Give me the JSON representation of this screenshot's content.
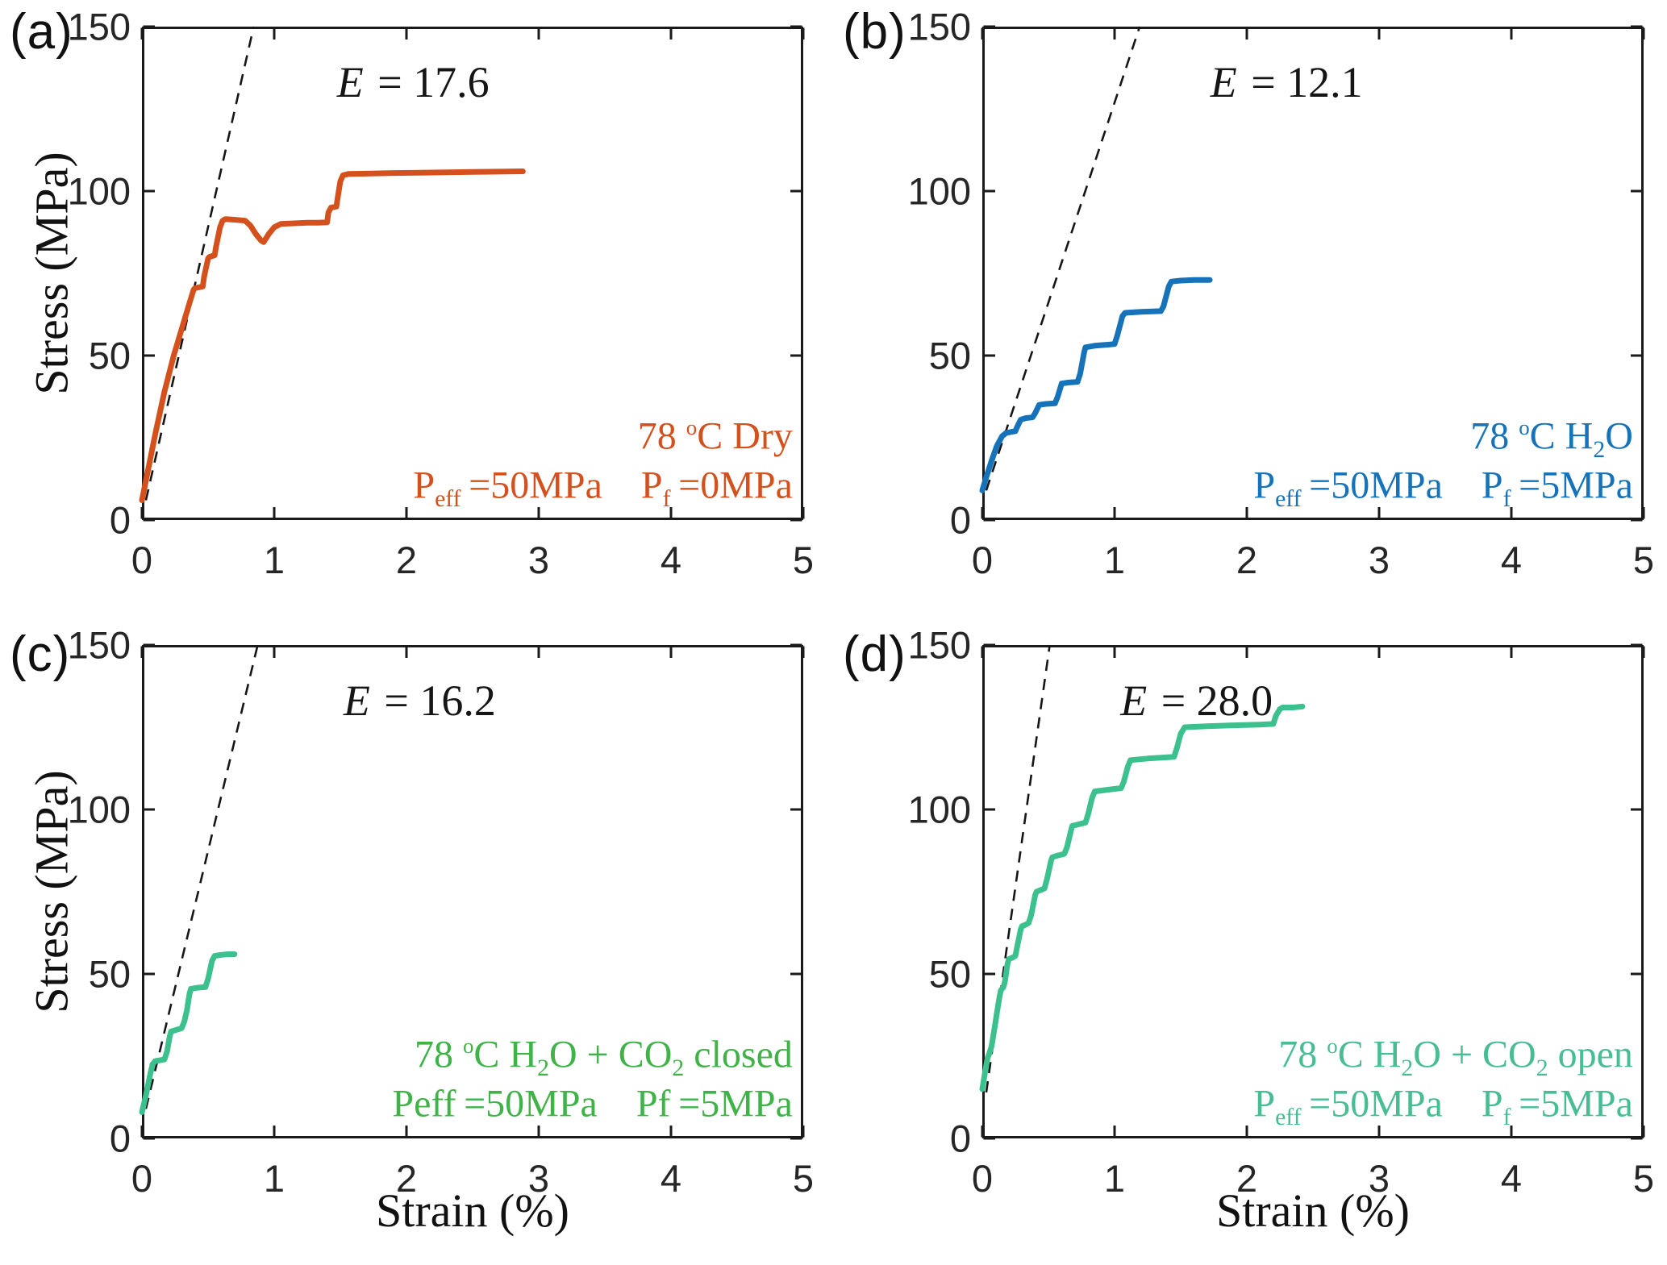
{
  "figure": {
    "background": "#ffffff",
    "frame_color": "#1a1a1a",
    "dashed_line_color": "#161616",
    "x_axis": {
      "label": "Strain (%)",
      "min": 0,
      "max": 5,
      "ticks": [
        0,
        1,
        2,
        3,
        4,
        5
      ]
    },
    "y_axis": {
      "label": "Stress (MPa)",
      "min": 0,
      "max": 150,
      "ticks": [
        0,
        50,
        100,
        150
      ]
    },
    "grid": "off",
    "legend": "none"
  },
  "chart_data": [
    {
      "panel_label": "(a)",
      "type": "line",
      "color": "#d4511e",
      "text_color": "#d4511e",
      "modulus_value": 17.6,
      "modulus_text": "E = 17.6",
      "modulus_label_segments": [
        {
          "t": "E",
          "i": true
        },
        {
          "t": " = 17.6"
        }
      ],
      "modulus_label_pos": [
        2.05,
        133
      ],
      "condition_text": "78 °C Dry",
      "condition_segments": [
        {
          "t": "78 "
        },
        {
          "t": "o",
          "sup": true
        },
        {
          "t": "C Dry"
        }
      ],
      "pressure_text": "Peff =50MPa  Pf =0MPa",
      "pressure_segments": [
        {
          "t": "P"
        },
        {
          "t": "eff",
          "sub": true
        },
        {
          "t": " =50MPa"
        },
        {
          "t": " "
        },
        {
          "t": "P"
        },
        {
          "t": "f",
          "sub": true
        },
        {
          "t": " =0MPa"
        }
      ],
      "annotation_anchor_x": 4.92,
      "condition_y": 25.5,
      "pressure_y": 10.5,
      "modulus_line": {
        "x": [
          0.03,
          0.845
        ],
        "y": [
          6,
          150
        ]
      },
      "series": {
        "name": "78 C Dry stress-strain",
        "points": [
          [
            0,
            6
          ],
          [
            0.04,
            14
          ],
          [
            0.1,
            26
          ],
          [
            0.17,
            39
          ],
          [
            0.24,
            50
          ],
          [
            0.3,
            58
          ],
          [
            0.36,
            66
          ],
          [
            0.39,
            70
          ],
          [
            0.4,
            70.5
          ],
          [
            0.46,
            71
          ],
          [
            0.47,
            74
          ],
          [
            0.5,
            79.5
          ],
          [
            0.51,
            80
          ],
          [
            0.55,
            80.5
          ],
          [
            0.56,
            83
          ],
          [
            0.59,
            89
          ],
          [
            0.61,
            91
          ],
          [
            0.63,
            91.5
          ],
          [
            0.7,
            91.3
          ],
          [
            0.78,
            91
          ],
          [
            0.82,
            89.5
          ],
          [
            0.86,
            87
          ],
          [
            0.9,
            85
          ],
          [
            0.92,
            84.5
          ],
          [
            0.96,
            87
          ],
          [
            1.0,
            89
          ],
          [
            1.05,
            90
          ],
          [
            1.15,
            90.2
          ],
          [
            1.25,
            90.4
          ],
          [
            1.33,
            90.4
          ],
          [
            1.4,
            90.5
          ],
          [
            1.41,
            93.5
          ],
          [
            1.43,
            95
          ],
          [
            1.47,
            95.3
          ],
          [
            1.48,
            98
          ],
          [
            1.5,
            103
          ],
          [
            1.52,
            104.8
          ],
          [
            1.56,
            105.2
          ],
          [
            1.7,
            105.3
          ],
          [
            1.9,
            105.5
          ],
          [
            2.1,
            105.6
          ],
          [
            2.3,
            105.7
          ],
          [
            2.5,
            105.8
          ],
          [
            2.7,
            105.9
          ],
          [
            2.88,
            106
          ]
        ]
      }
    },
    {
      "panel_label": "(b)",
      "type": "line",
      "color": "#1673b9",
      "text_color": "#1673b9",
      "modulus_value": 12.1,
      "modulus_text": "E = 12.1",
      "modulus_label_segments": [
        {
          "t": "E",
          "i": true
        },
        {
          "t": " = 12.1"
        }
      ],
      "modulus_label_pos": [
        2.3,
        133
      ],
      "condition_text": "78 °C H2O",
      "condition_segments": [
        {
          "t": "78 "
        },
        {
          "t": "o",
          "sup": true
        },
        {
          "t": "C H"
        },
        {
          "t": "2",
          "sub": true
        },
        {
          "t": "O"
        }
      ],
      "pressure_text": "Peff =50MPa  Pf =5MPa",
      "pressure_segments": [
        {
          "t": "P"
        },
        {
          "t": "eff",
          "sub": true
        },
        {
          "t": " =50MPa"
        },
        {
          "t": " "
        },
        {
          "t": "P"
        },
        {
          "t": "f",
          "sub": true
        },
        {
          "t": " =5MPa"
        }
      ],
      "annotation_anchor_x": 4.92,
      "condition_y": 25.5,
      "pressure_y": 10.5,
      "modulus_line": {
        "x": [
          0.03,
          1.19
        ],
        "y": [
          9,
          150
        ]
      },
      "series": {
        "name": "78 C H2O stress-strain",
        "points": [
          [
            0,
            9
          ],
          [
            0.03,
            13
          ],
          [
            0.07,
            18
          ],
          [
            0.11,
            22.5
          ],
          [
            0.15,
            25.5
          ],
          [
            0.18,
            26.5
          ],
          [
            0.22,
            26.8
          ],
          [
            0.25,
            27
          ],
          [
            0.26,
            28
          ],
          [
            0.29,
            30.5
          ],
          [
            0.33,
            31
          ],
          [
            0.38,
            31.2
          ],
          [
            0.4,
            32.5
          ],
          [
            0.43,
            35
          ],
          [
            0.48,
            35.3
          ],
          [
            0.55,
            35.5
          ],
          [
            0.57,
            37.5
          ],
          [
            0.6,
            41.5
          ],
          [
            0.65,
            41.8
          ],
          [
            0.72,
            42
          ],
          [
            0.74,
            44.5
          ],
          [
            0.77,
            51
          ],
          [
            0.78,
            52.5
          ],
          [
            0.85,
            53
          ],
          [
            0.95,
            53.3
          ],
          [
            1.0,
            53.5
          ],
          [
            1.02,
            56
          ],
          [
            1.06,
            62
          ],
          [
            1.08,
            63
          ],
          [
            1.2,
            63.3
          ],
          [
            1.35,
            63.5
          ],
          [
            1.37,
            65
          ],
          [
            1.41,
            71
          ],
          [
            1.43,
            72.5
          ],
          [
            1.5,
            72.8
          ],
          [
            1.6,
            73
          ],
          [
            1.72,
            73
          ]
        ]
      }
    },
    {
      "panel_label": "(c)",
      "type": "line",
      "color": "#3cc18e",
      "text_color": "#3fb347",
      "modulus_value": 16.2,
      "modulus_text": "E = 16.2",
      "modulus_label_segments": [
        {
          "t": "E",
          "i": true
        },
        {
          "t": " = 16.2"
        }
      ],
      "modulus_label_pos": [
        2.1,
        133
      ],
      "condition_text": "78 °C H2O + CO2 closed",
      "condition_segments": [
        {
          "t": "78 "
        },
        {
          "t": "o",
          "sup": true
        },
        {
          "t": "C H"
        },
        {
          "t": "2",
          "sub": true
        },
        {
          "t": "O + CO"
        },
        {
          "t": "2",
          "sub": true
        },
        {
          "t": " closed"
        }
      ],
      "pressure_text": "Peff =50MPa  Pf =5MPa",
      "pressure_segments": [
        {
          "t": "Peff =50MPa"
        },
        {
          "t": " "
        },
        {
          "t": "Pf =5MPa"
        }
      ],
      "annotation_anchor_x": 4.92,
      "condition_y": 25.5,
      "pressure_y": 10.5,
      "modulus_line": {
        "x": [
          0.03,
          0.875
        ],
        "y": [
          9,
          150
        ]
      },
      "series": {
        "name": "78 C H2O + CO2 closed stress-strain",
        "points": [
          [
            0,
            8
          ],
          [
            0.03,
            13
          ],
          [
            0.06,
            19
          ],
          [
            0.08,
            22.5
          ],
          [
            0.1,
            23.5
          ],
          [
            0.14,
            23.8
          ],
          [
            0.17,
            24
          ],
          [
            0.19,
            26.5
          ],
          [
            0.21,
            31
          ],
          [
            0.22,
            32.5
          ],
          [
            0.26,
            33
          ],
          [
            0.3,
            33.5
          ],
          [
            0.32,
            35.5
          ],
          [
            0.34,
            39
          ],
          [
            0.36,
            44
          ],
          [
            0.37,
            45.5
          ],
          [
            0.42,
            45.8
          ],
          [
            0.48,
            46
          ],
          [
            0.5,
            48.5
          ],
          [
            0.53,
            54
          ],
          [
            0.55,
            55.5
          ],
          [
            0.6,
            55.8
          ],
          [
            0.65,
            56
          ],
          [
            0.7,
            56
          ]
        ]
      }
    },
    {
      "panel_label": "(d)",
      "type": "line",
      "color": "#3cc18e",
      "text_color": "#48bd94",
      "modulus_value": 28.0,
      "modulus_text": "E = 28.0",
      "modulus_label_segments": [
        {
          "t": "E",
          "i": true
        },
        {
          "t": " = 28.0"
        }
      ],
      "modulus_label_pos": [
        1.62,
        133
      ],
      "condition_text": "78 °C H2O + CO2 open",
      "condition_segments": [
        {
          "t": "78 "
        },
        {
          "t": "o",
          "sup": true
        },
        {
          "t": "C H"
        },
        {
          "t": "2",
          "sub": true
        },
        {
          "t": "O + CO"
        },
        {
          "t": "2",
          "sub": true
        },
        {
          "t": " open"
        }
      ],
      "pressure_text": "Peff =50MPa  Pf =5MPa",
      "pressure_segments": [
        {
          "t": "P"
        },
        {
          "t": "eff",
          "sub": true
        },
        {
          "t": " =50MPa"
        },
        {
          "t": " "
        },
        {
          "t": "P"
        },
        {
          "t": "f",
          "sub": true
        },
        {
          "t": " =5MPa"
        }
      ],
      "annotation_anchor_x": 4.92,
      "condition_y": 25.5,
      "pressure_y": 10.5,
      "modulus_line": {
        "x": [
          0.03,
          0.51
        ],
        "y": [
          14,
          150
        ]
      },
      "series": {
        "name": "78 C H2O + CO2 open stress-strain",
        "points": [
          [
            0,
            15
          ],
          [
            0.02,
            20
          ],
          [
            0.04,
            24.5
          ],
          [
            0.05,
            25.5
          ],
          [
            0.07,
            28
          ],
          [
            0.09,
            33
          ],
          [
            0.11,
            38
          ],
          [
            0.13,
            43
          ],
          [
            0.14,
            45
          ],
          [
            0.16,
            46
          ],
          [
            0.17,
            47.5
          ],
          [
            0.19,
            53
          ],
          [
            0.2,
            54.5
          ],
          [
            0.23,
            55
          ],
          [
            0.25,
            55.5
          ],
          [
            0.26,
            57.5
          ],
          [
            0.29,
            63.5
          ],
          [
            0.3,
            64.5
          ],
          [
            0.33,
            65
          ],
          [
            0.35,
            65.5
          ],
          [
            0.37,
            68
          ],
          [
            0.4,
            74
          ],
          [
            0.41,
            75
          ],
          [
            0.44,
            75.5
          ],
          [
            0.47,
            76
          ],
          [
            0.49,
            79
          ],
          [
            0.52,
            84.5
          ],
          [
            0.53,
            85.5
          ],
          [
            0.57,
            86
          ],
          [
            0.62,
            86.5
          ],
          [
            0.64,
            88.5
          ],
          [
            0.67,
            93.5
          ],
          [
            0.68,
            95
          ],
          [
            0.73,
            95.5
          ],
          [
            0.78,
            96
          ],
          [
            0.8,
            98.5
          ],
          [
            0.83,
            103.5
          ],
          [
            0.85,
            105.5
          ],
          [
            0.95,
            106
          ],
          [
            1.05,
            106.5
          ],
          [
            1.07,
            108.5
          ],
          [
            1.1,
            113
          ],
          [
            1.12,
            115
          ],
          [
            1.25,
            115.5
          ],
          [
            1.45,
            116
          ],
          [
            1.47,
            118.5
          ],
          [
            1.5,
            123
          ],
          [
            1.53,
            125
          ],
          [
            1.7,
            125.3
          ],
          [
            1.9,
            125.6
          ],
          [
            2.1,
            125.8
          ],
          [
            2.2,
            126
          ],
          [
            2.22,
            128.5
          ],
          [
            2.25,
            130.5
          ],
          [
            2.27,
            131
          ],
          [
            2.35,
            131
          ],
          [
            2.42,
            131.3
          ]
        ]
      }
    }
  ]
}
